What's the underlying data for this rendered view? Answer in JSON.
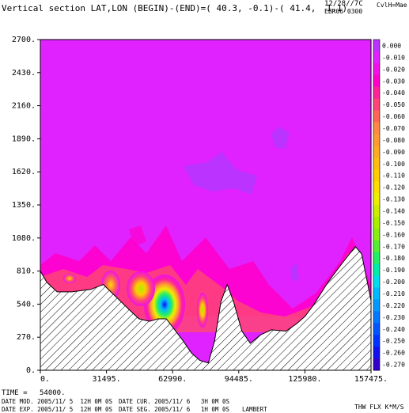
{
  "header": {
    "title": "Vertical section LAT,LON (BEGIN)-(END)=( 40.3, -0.1)-( 41.4,  1.1)",
    "date": "12/28//7C",
    "code": "EBR06 0300",
    "cvunit": "CvlH=Mae"
  },
  "footer": {
    "time_label": "TIME =",
    "time_value": "54000.",
    "date_mod": "DATE MOD. 2005/11/ 5  12H 0M 0S",
    "date_cur": "DATE CUR. 2005/11/ 6   3H 0M 0S",
    "date_exp": "DATE EXP. 2005/11/ 5  12H 0M 0S",
    "date_seg": "DATE SEG. 2005/11/ 6   1H 0M 0S",
    "projection": "LAMBERT",
    "field": "THW FLX K*M/S"
  },
  "colors": {
    "background_field": "#df22ff",
    "terrain_hatch": "#000000"
  },
  "chart_data": {
    "type": "heatmap",
    "xlim": [
      0,
      157475
    ],
    "ylim": [
      0,
      2700
    ],
    "x_ticks": [
      "0.",
      "31495.",
      "62990.",
      "94485.",
      "125980.",
      "157475."
    ],
    "x_tick_values": [
      0,
      31495,
      62990,
      94485,
      125980,
      157475
    ],
    "y_ticks": [
      "0.",
      "270.",
      "540.",
      "810.",
      "1080.",
      "1350.",
      "1620.",
      "1890.",
      "2160.",
      "2430.",
      "2700."
    ],
    "y_tick_values": [
      0,
      270,
      540,
      810,
      1080,
      1350,
      1620,
      1890,
      2160,
      2430,
      2700
    ],
    "colorbar": {
      "labels": [
        "0.000",
        "-0.010",
        "-0.020",
        "-0.030",
        "-0.040",
        "-0.050",
        "-0.060",
        "-0.070",
        "-0.080",
        "-0.090",
        "-0.100",
        "-0.110",
        "-0.120",
        "-0.130",
        "-0.140",
        "-0.150",
        "-0.160",
        "-0.170",
        "-0.180",
        "-0.190",
        "-0.200",
        "-0.210",
        "-0.220",
        "-0.230",
        "-0.240",
        "-0.250",
        "-0.260",
        "-0.270"
      ],
      "colors": [
        "#bb33ff",
        "#df22ff",
        "#f011e8",
        "#ff00cc",
        "#ff2299",
        "#ff4477",
        "#ff6655",
        "#ff8844",
        "#ff9933",
        "#ffaa22",
        "#ffbb11",
        "#ffcc00",
        "#ffdd00",
        "#eeee00",
        "#ccee00",
        "#aaee00",
        "#88ee11",
        "#55ee33",
        "#22ee66",
        "#00eeaa",
        "#00ddee",
        "#00bbff",
        "#0099ff",
        "#0077ff",
        "#0055ff",
        "#0033ff",
        "#1111ee",
        "#3300cc"
      ]
    },
    "terrain": [
      [
        0,
        810
      ],
      [
        3000,
        720
      ],
      [
        8000,
        640
      ],
      [
        15000,
        640
      ],
      [
        24000,
        660
      ],
      [
        30000,
        700
      ],
      [
        36000,
        600
      ],
      [
        42000,
        500
      ],
      [
        47000,
        420
      ],
      [
        52000,
        400
      ],
      [
        56000,
        420
      ],
      [
        60000,
        420
      ],
      [
        64000,
        330
      ],
      [
        68000,
        240
      ],
      [
        72000,
        140
      ],
      [
        76000,
        80
      ],
      [
        80000,
        60
      ],
      [
        83000,
        240
      ],
      [
        86000,
        560
      ],
      [
        89000,
        700
      ],
      [
        92000,
        560
      ],
      [
        96000,
        320
      ],
      [
        100000,
        220
      ],
      [
        105000,
        290
      ],
      [
        110000,
        330
      ],
      [
        117000,
        320
      ],
      [
        122000,
        380
      ],
      [
        126000,
        440
      ],
      [
        130000,
        530
      ],
      [
        137000,
        720
      ],
      [
        144000,
        880
      ],
      [
        150000,
        1010
      ],
      [
        153000,
        950
      ],
      [
        157475,
        570
      ]
    ]
  }
}
